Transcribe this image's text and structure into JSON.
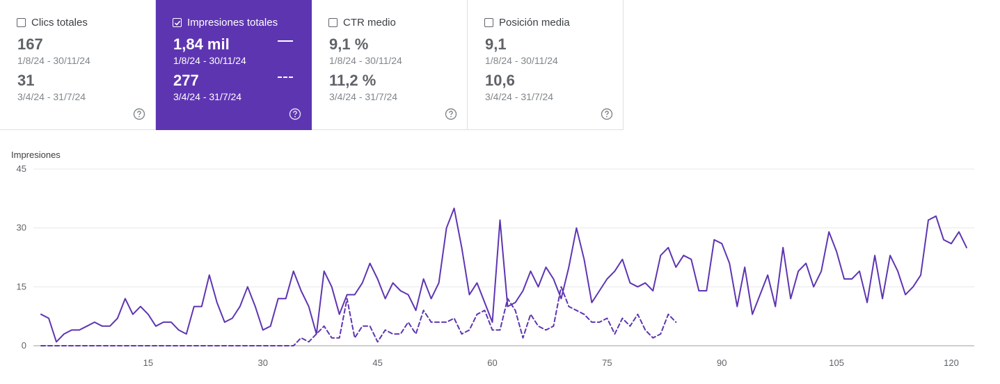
{
  "cards": [
    {
      "label": "Clics totales",
      "checked": false,
      "value1": "167",
      "range1": "1/8/24 - 30/11/24",
      "value2": "31",
      "range2": "3/4/24 - 31/7/24"
    },
    {
      "label": "Impresiones totales",
      "checked": true,
      "value1": "1,84 mil",
      "range1": "1/8/24 - 30/11/24",
      "value2": "277",
      "range2": "3/4/24 - 31/7/24"
    },
    {
      "label": "CTR medio",
      "checked": false,
      "value1": "9,1 %",
      "range1": "1/8/24 - 30/11/24",
      "value2": "11,2 %",
      "range2": "3/4/24 - 31/7/24"
    },
    {
      "label": "Posición media",
      "checked": false,
      "value1": "9,1",
      "range1": "1/8/24 - 30/11/24",
      "value2": "10,6",
      "range2": "3/4/24 - 31/7/24"
    }
  ],
  "colors": {
    "accent": "#5e35b1",
    "line": "#5e35b1",
    "grid": "#e8e8e8"
  },
  "chart_data": {
    "type": "line",
    "ylabel": "Impresiones",
    "ylim": [
      0,
      45
    ],
    "xlim": [
      0,
      123
    ],
    "yticks": [
      0,
      15,
      30,
      45
    ],
    "xticks": [
      15,
      30,
      45,
      60,
      75,
      90,
      105,
      120
    ],
    "grid": true,
    "series": [
      {
        "name": "1/8/24 - 30/11/24",
        "style": "solid",
        "values": [
          8,
          7,
          1,
          3,
          4,
          4,
          5,
          6,
          5,
          5,
          7,
          12,
          8,
          10,
          8,
          5,
          6,
          6,
          4,
          3,
          10,
          10,
          18,
          11,
          6,
          7,
          10,
          15,
          10,
          4,
          5,
          12,
          12,
          19,
          14,
          10,
          3,
          19,
          15,
          8,
          13,
          13,
          16,
          21,
          17,
          12,
          16,
          14,
          13,
          9,
          17,
          12,
          16,
          30,
          35,
          25,
          13,
          16,
          11,
          6,
          32,
          10,
          11,
          14,
          19,
          15,
          20,
          17,
          12,
          20,
          30,
          22,
          11,
          14,
          17,
          19,
          22,
          16,
          15,
          16,
          14,
          23,
          25,
          20,
          23,
          22,
          14,
          14,
          27,
          26,
          21,
          10,
          20,
          8,
          13,
          18,
          10,
          25,
          12,
          19,
          21,
          15,
          19,
          29,
          24,
          17,
          17,
          19,
          11,
          23,
          12,
          23,
          19,
          13,
          15,
          18,
          32,
          33,
          27,
          26,
          29,
          25
        ]
      },
      {
        "name": "3/4/24 - 31/7/24",
        "style": "dashed",
        "values": [
          0,
          0,
          0,
          0,
          0,
          0,
          0,
          0,
          0,
          0,
          0,
          0,
          0,
          0,
          0,
          0,
          0,
          0,
          0,
          0,
          0,
          0,
          0,
          0,
          0,
          0,
          0,
          0,
          0,
          0,
          0,
          0,
          0,
          0,
          2,
          1,
          3,
          5,
          2,
          2,
          12,
          2,
          5,
          5,
          1,
          4,
          3,
          3,
          6,
          3,
          9,
          6,
          6,
          6,
          7,
          3,
          4,
          8,
          9,
          4,
          4,
          12,
          9,
          2,
          8,
          5,
          4,
          5,
          15,
          10,
          9,
          8,
          6,
          6,
          7,
          3,
          7,
          5,
          8,
          4,
          2,
          3,
          8,
          6
        ]
      }
    ]
  }
}
